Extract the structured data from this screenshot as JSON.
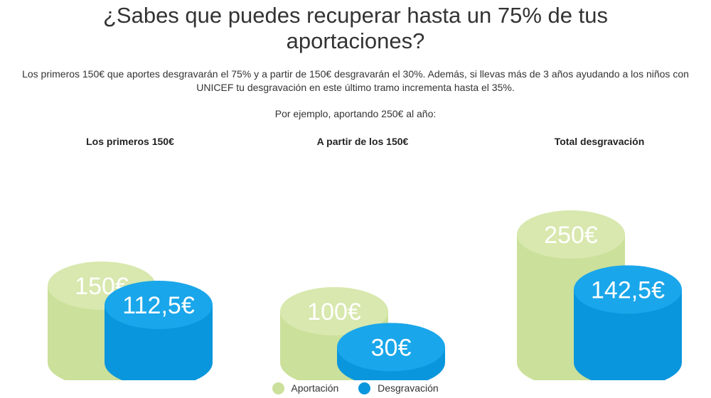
{
  "title": {
    "line1": "¿Sabes que puedes recuperar hasta un 75% de tus",
    "line2": "aportaciones?"
  },
  "intro": "Los primeros 150€ que aportes desgravarán el 75% y a partir de 150€ desgravarán el 30%. Además, si llevas más de 3 años ayudando a los niños con UNICEF tu desgravación en este último tramo incrementa hasta el 35%.",
  "example": "Por ejemplo, aportando 250€ al año:",
  "colors": {
    "aportacion": "#cbe09a",
    "aportacion_top": "#d8e8ae",
    "desgravacion": "#0a96dd",
    "desgravacion_top": "#1aa6ea"
  },
  "chart_data": {
    "type": "bar",
    "categories": [
      "Los primeros 150€",
      "A partir de los 150€",
      "Total desgravación"
    ],
    "series": [
      {
        "name": "Aportación",
        "values": [
          150,
          100,
          250
        ],
        "labels": [
          "150€",
          "100€",
          "250€"
        ]
      },
      {
        "name": "Desgravación",
        "values": [
          112.5,
          30,
          142.5
        ],
        "labels": [
          "112,5€",
          "30€",
          "142,5€"
        ]
      }
    ]
  },
  "legend": [
    {
      "label": "Aportación"
    },
    {
      "label": "Desgravación"
    }
  ]
}
